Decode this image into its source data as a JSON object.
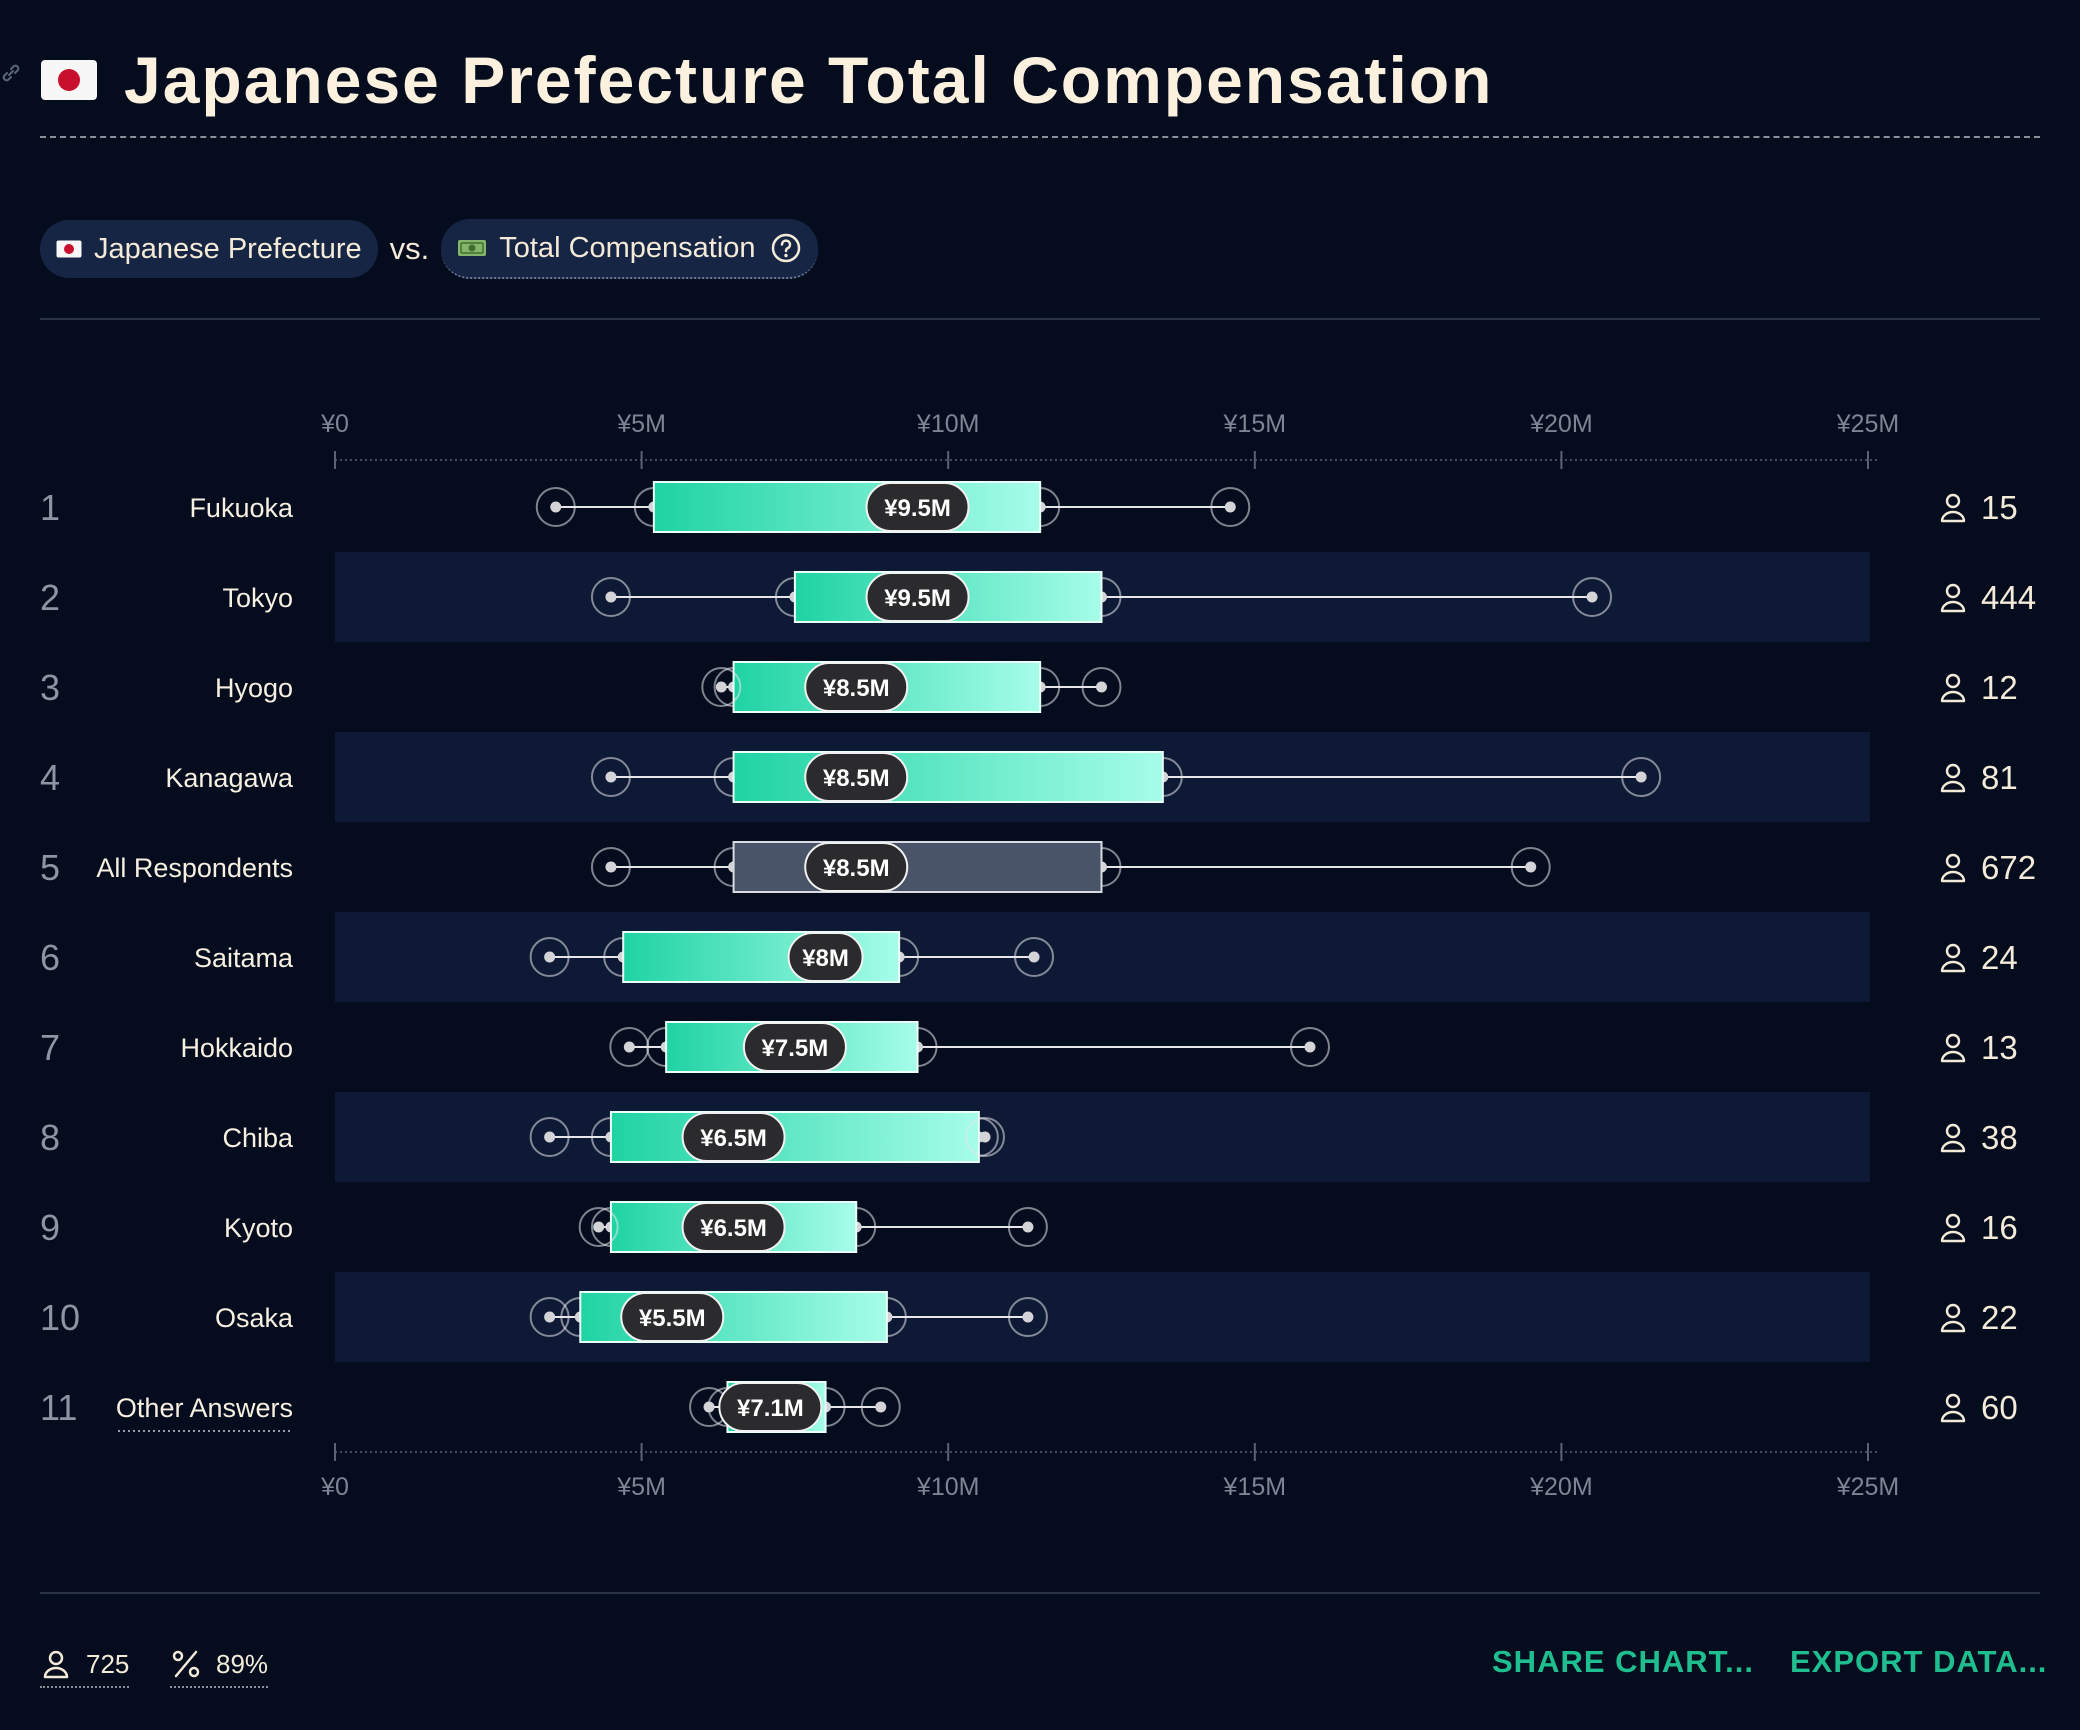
{
  "title": "Japanese Prefecture Total Compensation",
  "filters": {
    "dimension_label": "Japanese Prefecture",
    "vs_label": "vs.",
    "metric_label": "Total Compensation"
  },
  "colors": {
    "background": "#040c1e",
    "band": "#0e1a35",
    "box_start": "#1fd3a3",
    "box_end": "#a6fde9",
    "reference_box": "#4a5468",
    "accent": "#1fbe8e"
  },
  "chart_data": {
    "type": "boxplot",
    "orientation": "horizontal",
    "x_unit": "¥M",
    "xlim": [
      0,
      25
    ],
    "x_ticks": [
      0,
      5,
      10,
      15,
      20,
      25
    ],
    "x_tick_labels": [
      "¥0",
      "¥5M",
      "¥10M",
      "¥15M",
      "¥20M",
      "¥25M"
    ],
    "rows": [
      {
        "rank": "1",
        "label": "Fukuoka",
        "whisker_low": 3.6,
        "q1": 5.2,
        "median": 9.5,
        "q3": 11.5,
        "whisker_high": 14.6,
        "median_label": "¥9.5M",
        "count": "15"
      },
      {
        "rank": "2",
        "label": "Tokyo",
        "whisker_low": 4.5,
        "q1": 7.5,
        "median": 9.5,
        "q3": 12.5,
        "whisker_high": 20.5,
        "median_label": "¥9.5M",
        "count": "444"
      },
      {
        "rank": "3",
        "label": "Hyogo",
        "whisker_low": 6.3,
        "q1": 6.5,
        "median": 8.5,
        "q3": 11.5,
        "whisker_high": 12.5,
        "median_label": "¥8.5M",
        "count": "12"
      },
      {
        "rank": "4",
        "label": "Kanagawa",
        "whisker_low": 4.5,
        "q1": 6.5,
        "median": 8.5,
        "q3": 13.5,
        "whisker_high": 21.3,
        "median_label": "¥8.5M",
        "count": "81"
      },
      {
        "rank": "5",
        "label": "All Respondents",
        "whisker_low": 4.5,
        "q1": 6.5,
        "median": 8.5,
        "q3": 12.5,
        "whisker_high": 19.5,
        "median_label": "¥8.5M",
        "count": "672",
        "reference": true
      },
      {
        "rank": "6",
        "label": "Saitama",
        "whisker_low": 3.5,
        "q1": 4.7,
        "median": 8.0,
        "q3": 9.2,
        "whisker_high": 11.4,
        "median_label": "¥8M",
        "count": "24"
      },
      {
        "rank": "7",
        "label": "Hokkaido",
        "whisker_low": 4.8,
        "q1": 5.4,
        "median": 7.5,
        "q3": 9.5,
        "whisker_high": 15.9,
        "median_label": "¥7.5M",
        "count": "13"
      },
      {
        "rank": "8",
        "label": "Chiba",
        "whisker_low": 3.5,
        "q1": 4.5,
        "median": 6.5,
        "q3": 10.5,
        "whisker_high": 10.6,
        "median_label": "¥6.5M",
        "count": "38"
      },
      {
        "rank": "9",
        "label": "Kyoto",
        "whisker_low": 4.3,
        "q1": 4.5,
        "median": 6.5,
        "q3": 8.5,
        "whisker_high": 11.3,
        "median_label": "¥6.5M",
        "count": "16"
      },
      {
        "rank": "10",
        "label": "Osaka",
        "whisker_low": 3.5,
        "q1": 4.0,
        "median": 5.5,
        "q3": 9.0,
        "whisker_high": 11.3,
        "median_label": "¥5.5M",
        "count": "22"
      },
      {
        "rank": "11",
        "label": "Other Answers",
        "whisker_low": 6.1,
        "q1": 6.4,
        "median": 7.1,
        "q3": 8.0,
        "whisker_high": 8.9,
        "median_label": "¥7.1M",
        "count": "60",
        "underlined": true
      }
    ]
  },
  "footer": {
    "respondents": "725",
    "percent": "89%",
    "share_label": "SHARE CHART...",
    "export_label": "EXPORT DATA..."
  }
}
